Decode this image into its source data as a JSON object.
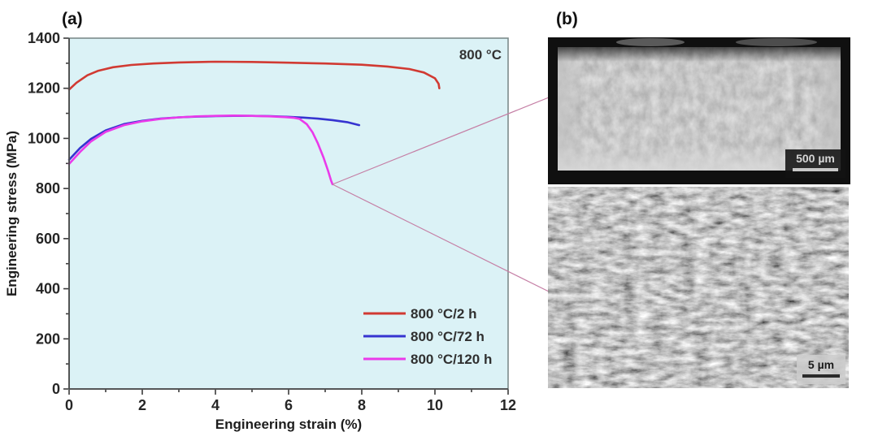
{
  "figure": {
    "panel_a_label": "(a)",
    "panel_b_label": "(b)"
  },
  "chart_data": {
    "type": "line",
    "annotation": "800 °C",
    "xlabel": "Engineering strain (%)",
    "ylabel": "Engineering stress (MPa)",
    "xlim": [
      0,
      12
    ],
    "ylim": [
      0,
      1400
    ],
    "x_ticks": [
      0,
      2,
      4,
      6,
      8,
      10,
      12
    ],
    "y_ticks": [
      0,
      200,
      400,
      600,
      800,
      1000,
      1200,
      1400
    ],
    "x_minor_step": 1,
    "y_minor_step": 100,
    "grid": false,
    "legend_position": "bottom-right",
    "plot_bg": "#dbf2f6",
    "series": [
      {
        "name": "800 °C/2 h",
        "color": "#d13a32",
        "points": [
          [
            0,
            1195
          ],
          [
            0.2,
            1222
          ],
          [
            0.5,
            1252
          ],
          [
            0.8,
            1270
          ],
          [
            1.2,
            1284
          ],
          [
            1.7,
            1293
          ],
          [
            2.3,
            1299
          ],
          [
            3,
            1303
          ],
          [
            4,
            1306
          ],
          [
            5,
            1305
          ],
          [
            6,
            1302
          ],
          [
            7,
            1299
          ],
          [
            8,
            1294
          ],
          [
            8.7,
            1287
          ],
          [
            9.3,
            1277
          ],
          [
            9.7,
            1263
          ],
          [
            10,
            1240
          ],
          [
            10.1,
            1218
          ],
          [
            10.12,
            1200
          ]
        ]
      },
      {
        "name": "800 °C/72 h",
        "color": "#3634d0",
        "points": [
          [
            0,
            915
          ],
          [
            0.3,
            962
          ],
          [
            0.6,
            998
          ],
          [
            1,
            1032
          ],
          [
            1.5,
            1057
          ],
          [
            2,
            1070
          ],
          [
            2.5,
            1079
          ],
          [
            3,
            1084
          ],
          [
            3.5,
            1087
          ],
          [
            4,
            1089
          ],
          [
            4.5,
            1090
          ],
          [
            5,
            1090
          ],
          [
            5.5,
            1089
          ],
          [
            6,
            1086
          ],
          [
            6.4,
            1083
          ],
          [
            6.8,
            1079
          ],
          [
            7.2,
            1073
          ],
          [
            7.6,
            1065
          ],
          [
            7.93,
            1053
          ]
        ]
      },
      {
        "name": "800 °C/120 h",
        "color": "#ea3aea",
        "points": [
          [
            0,
            898
          ],
          [
            0.3,
            946
          ],
          [
            0.6,
            988
          ],
          [
            1,
            1026
          ],
          [
            1.5,
            1053
          ],
          [
            2,
            1068
          ],
          [
            2.5,
            1078
          ],
          [
            3,
            1084
          ],
          [
            3.5,
            1088
          ],
          [
            4,
            1090
          ],
          [
            4.5,
            1091
          ],
          [
            5,
            1090
          ],
          [
            5.5,
            1088
          ],
          [
            5.9,
            1085
          ],
          [
            6.15,
            1082
          ],
          [
            6.3,
            1078
          ],
          [
            6.5,
            1056
          ],
          [
            6.65,
            1025
          ],
          [
            6.8,
            980
          ],
          [
            6.95,
            925
          ],
          [
            7.08,
            870
          ],
          [
            7.16,
            832
          ],
          [
            7.2,
            817
          ]
        ]
      }
    ]
  },
  "micrographs": {
    "top": {
      "scale_label": "500 µm"
    },
    "bottom": {
      "scale_label": "5 µm"
    }
  },
  "connector": {
    "color": "#c57fa5"
  },
  "colors": {
    "plot_border": "#7d8c8c",
    "axis": "#4a4a4a",
    "tick": "#3a3a3a"
  }
}
